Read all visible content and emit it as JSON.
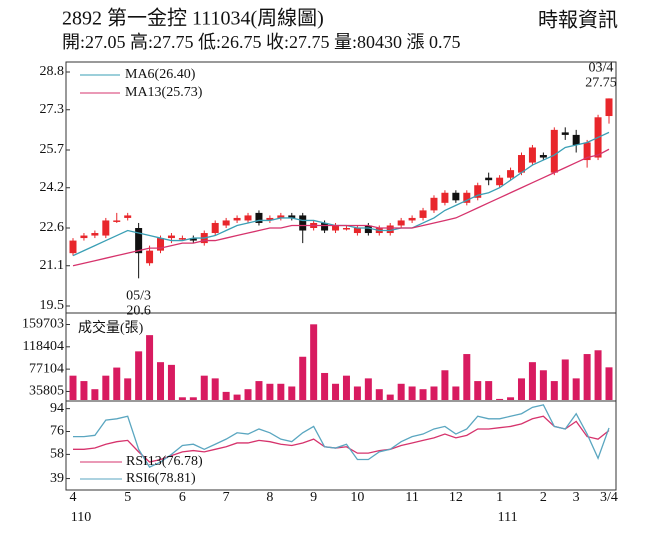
{
  "header": {
    "title": "2892  第一金控  111034(周線圖)",
    "source": "時報資訊",
    "quote": "開:27.05 高:27.75 低:26.75 收:27.75 量:80430 漲 0.75"
  },
  "chart_data": [
    {
      "type": "candlestick",
      "up_color": "#e8262b",
      "down_color": "#111111",
      "categories": [
        "4",
        null,
        null,
        null,
        null,
        "5",
        null,
        null,
        null,
        null,
        "6",
        null,
        null,
        null,
        "7",
        null,
        null,
        null,
        "8",
        null,
        null,
        null,
        "9",
        null,
        null,
        null,
        "10",
        null,
        null,
        null,
        null,
        "11",
        null,
        null,
        null,
        "12",
        null,
        null,
        null,
        "1",
        null,
        null,
        null,
        "2",
        null,
        null,
        "3",
        null,
        null,
        "3/4"
      ],
      "years": [
        "110",
        null,
        null,
        null,
        null,
        null,
        null,
        null,
        null,
        null,
        null,
        null,
        null,
        null,
        null,
        null,
        null,
        null,
        null,
        null,
        null,
        null,
        null,
        null,
        null,
        null,
        null,
        null,
        null,
        null,
        null,
        null,
        null,
        null,
        null,
        null,
        null,
        null,
        null,
        "111",
        null,
        null,
        null,
        null,
        null,
        null,
        null,
        null,
        null,
        null
      ],
      "open": [
        21.6,
        22.2,
        22.3,
        22.3,
        22.9,
        23.0,
        22.6,
        21.2,
        21.7,
        22.2,
        22.2,
        22.2,
        22.0,
        22.4,
        22.7,
        22.9,
        22.9,
        23.2,
        22.9,
        23.0,
        23.1,
        23.1,
        22.6,
        22.8,
        22.5,
        22.6,
        22.4,
        22.7,
        22.4,
        22.4,
        22.7,
        22.9,
        23.0,
        23.3,
        23.6,
        24.0,
        23.6,
        23.8,
        24.6,
        24.3,
        24.6,
        24.8,
        25.2,
        25.5,
        24.8,
        26.4,
        26.3,
        25.3,
        25.4,
        27.05
      ],
      "high": [
        22.2,
        22.4,
        22.5,
        23.0,
        23.2,
        23.2,
        22.8,
        21.9,
        22.3,
        22.4,
        22.3,
        22.3,
        22.5,
        22.9,
        23.0,
        23.1,
        23.2,
        23.3,
        23.1,
        23.2,
        23.2,
        23.2,
        22.9,
        22.9,
        22.8,
        22.7,
        22.7,
        22.8,
        22.7,
        22.8,
        23.0,
        23.1,
        23.4,
        23.9,
        24.1,
        24.1,
        24.1,
        24.4,
        24.8,
        24.7,
        25.0,
        25.6,
        25.9,
        25.6,
        26.6,
        26.6,
        26.5,
        26.1,
        27.1,
        27.75
      ],
      "low": [
        21.5,
        22.1,
        22.2,
        22.2,
        22.8,
        22.9,
        20.6,
        21.1,
        21.6,
        22.0,
        22.1,
        22.0,
        21.9,
        22.3,
        22.6,
        22.8,
        22.8,
        22.7,
        22.8,
        22.9,
        22.9,
        22.0,
        22.5,
        22.4,
        22.4,
        22.5,
        22.3,
        22.3,
        22.3,
        22.3,
        22.6,
        22.8,
        22.9,
        23.2,
        23.5,
        23.6,
        23.5,
        23.7,
        24.3,
        24.2,
        24.5,
        24.7,
        25.1,
        25.3,
        24.7,
        26.1,
        25.6,
        25.0,
        25.3,
        26.75
      ],
      "close": [
        22.1,
        22.3,
        22.4,
        22.9,
        22.9,
        23.1,
        21.6,
        21.7,
        22.2,
        22.3,
        22.2,
        22.1,
        22.4,
        22.8,
        22.9,
        23.0,
        23.1,
        22.8,
        23.0,
        23.1,
        23.0,
        22.5,
        22.8,
        22.5,
        22.7,
        22.6,
        22.6,
        22.4,
        22.6,
        22.7,
        22.9,
        23.0,
        23.3,
        23.8,
        24.0,
        23.7,
        24.0,
        24.3,
        24.5,
        24.6,
        24.9,
        25.5,
        25.8,
        25.4,
        26.5,
        26.3,
        25.9,
        26.0,
        27.0,
        27.75
      ],
      "series": [
        {
          "name": "MA6(26.40)",
          "color": "#3a9fb5",
          "values": [
            21.5,
            21.7,
            21.9,
            22.1,
            22.3,
            22.5,
            22.4,
            22.3,
            22.2,
            22.1,
            22.1,
            22.2,
            22.2,
            22.3,
            22.5,
            22.7,
            22.8,
            22.9,
            22.9,
            23.0,
            23.0,
            22.9,
            22.9,
            22.8,
            22.7,
            22.7,
            22.6,
            22.6,
            22.5,
            22.5,
            22.6,
            22.6,
            22.8,
            23.0,
            23.3,
            23.5,
            23.7,
            23.9,
            24.0,
            24.2,
            24.5,
            24.8,
            25.1,
            25.3,
            25.5,
            25.8,
            25.9,
            26.0,
            26.2,
            26.4
          ]
        },
        {
          "name": "MA13(25.73)",
          "color": "#d6336c",
          "values": [
            21.1,
            21.2,
            21.3,
            21.4,
            21.5,
            21.6,
            21.7,
            21.8,
            21.8,
            21.9,
            22.0,
            22.0,
            22.1,
            22.1,
            22.2,
            22.3,
            22.4,
            22.5,
            22.6,
            22.6,
            22.7,
            22.7,
            22.7,
            22.7,
            22.7,
            22.7,
            22.7,
            22.7,
            22.6,
            22.6,
            22.6,
            22.6,
            22.7,
            22.8,
            22.9,
            23.0,
            23.2,
            23.4,
            23.6,
            23.8,
            24.0,
            24.2,
            24.4,
            24.6,
            24.8,
            25.0,
            25.2,
            25.4,
            25.5,
            25.73
          ]
        }
      ],
      "annotations": [
        {
          "date": "05/3",
          "value": 20.6
        },
        {
          "date": "03/4",
          "value": 27.75
        }
      ],
      "ylim": [
        19.5,
        28.8
      ],
      "yticks": [
        19.5,
        21.1,
        22.6,
        24.2,
        25.7,
        27.3,
        28.8
      ]
    },
    {
      "type": "bar",
      "title": "成交量(張)",
      "color": "#d81b60",
      "values": [
        65000,
        55000,
        40000,
        65000,
        80000,
        60000,
        110000,
        140000,
        90000,
        85000,
        25000,
        25000,
        65000,
        60000,
        35000,
        30000,
        40000,
        55000,
        50000,
        50000,
        45000,
        100000,
        160000,
        70000,
        50000,
        65000,
        45000,
        60000,
        40000,
        30000,
        50000,
        45000,
        40000,
        45000,
        75000,
        45000,
        105000,
        55000,
        55000,
        22000,
        25000,
        60000,
        90000,
        75000,
        55000,
        95000,
        60000,
        105000,
        112000,
        80430
      ],
      "ylim": [
        20000,
        168000
      ],
      "yticks": [
        35805,
        77104,
        118404,
        159703
      ]
    },
    {
      "type": "line",
      "series": [
        {
          "name": "RSI13(76.78)",
          "color": "#d6336c",
          "values": [
            62,
            62,
            63,
            66,
            68,
            69,
            60,
            52,
            54,
            57,
            60,
            61,
            60,
            62,
            64,
            67,
            67,
            69,
            68,
            66,
            65,
            67,
            70,
            64,
            63,
            64,
            59,
            59,
            61,
            62,
            65,
            67,
            69,
            71,
            74,
            71,
            73,
            78,
            78,
            79,
            80,
            82,
            86,
            88,
            80,
            78,
            84,
            72,
            70,
            76.78
          ]
        },
        {
          "name": "RSI6(78.81)",
          "color": "#5aa6c0",
          "values": [
            72,
            72,
            73,
            85,
            86,
            88,
            62,
            48,
            52,
            58,
            65,
            66,
            62,
            66,
            70,
            75,
            74,
            78,
            75,
            70,
            68,
            75,
            80,
            64,
            63,
            66,
            54,
            54,
            60,
            62,
            68,
            72,
            74,
            78,
            80,
            74,
            78,
            88,
            86,
            86,
            88,
            90,
            95,
            97,
            80,
            78,
            90,
            74,
            55,
            78.81
          ]
        }
      ],
      "ylim": [
        30,
        100
      ],
      "yticks": [
        39,
        58,
        76,
        94
      ]
    }
  ]
}
